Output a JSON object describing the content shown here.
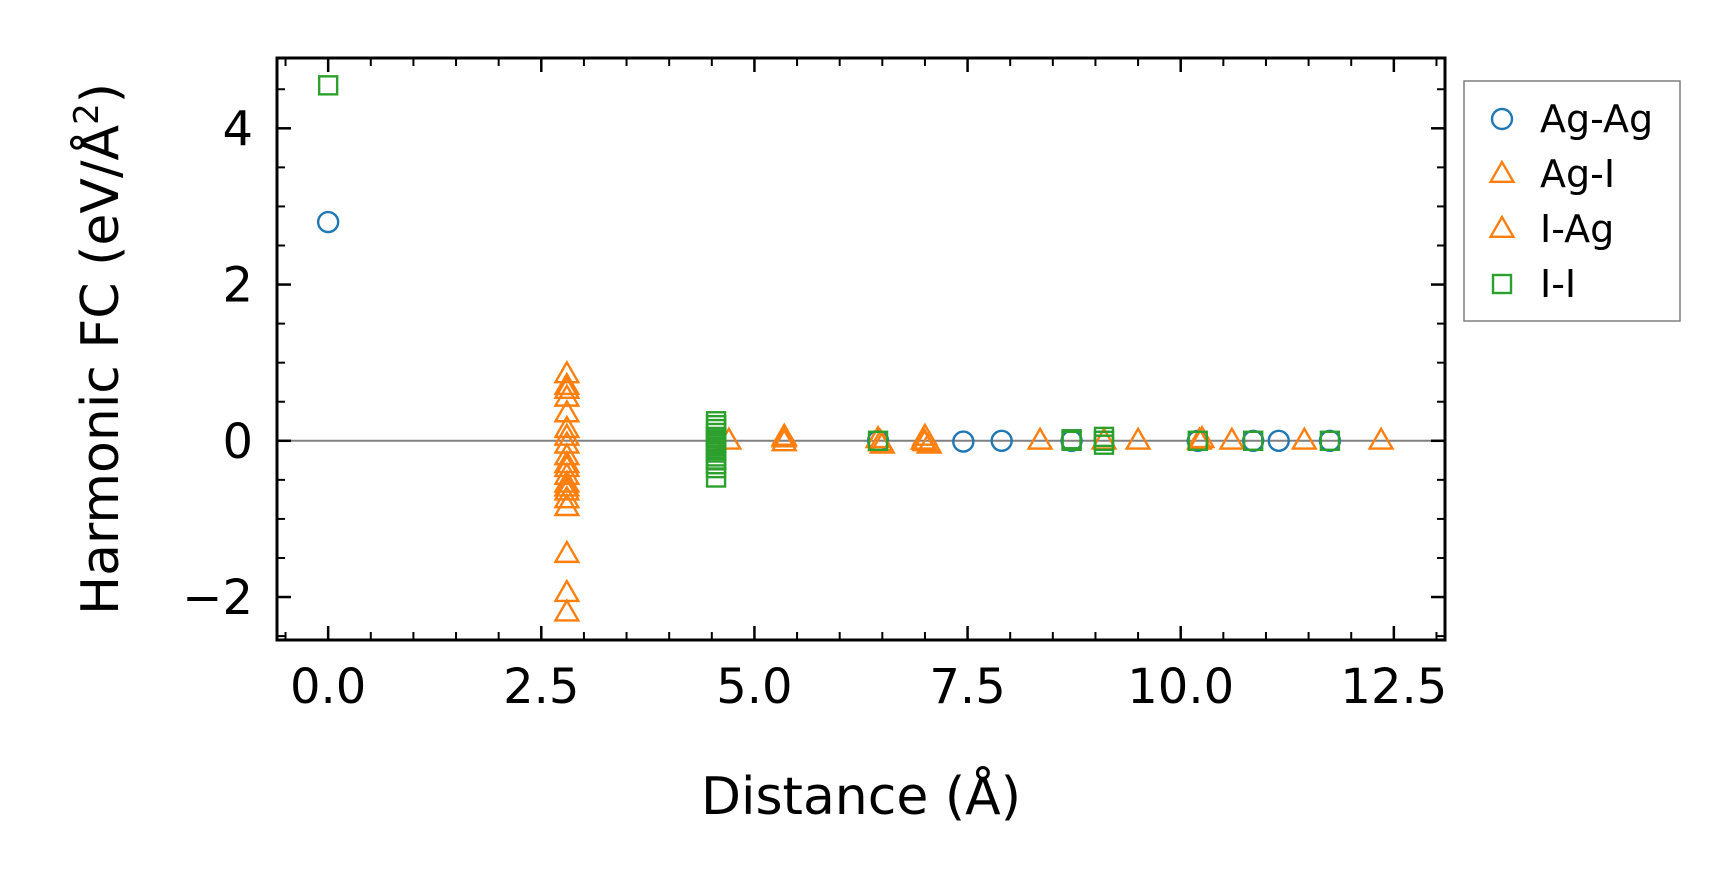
{
  "chart_data": {
    "type": "scatter",
    "title": "",
    "xlabel": "Distance (Å)",
    "ylabel": "Harmonic FC (eV/Å",
    "ylabel_sup": "2",
    "ylabel_close": ")",
    "xlim": [
      -0.6,
      13.1
    ],
    "ylim": [
      -2.55,
      4.9
    ],
    "xticks": [
      0.0,
      2.5,
      5.0,
      7.5,
      10.0,
      12.5
    ],
    "xtick_labels": [
      "0.0",
      "2.5",
      "5.0",
      "7.5",
      "10.0",
      "12.5"
    ],
    "yticks": [
      -2,
      0,
      2,
      4
    ],
    "ytick_labels": [
      "−2",
      "0",
      "2",
      "4"
    ],
    "zero_line": true,
    "legend_position": "outside-right-top",
    "series": [
      {
        "name": "Ag-Ag",
        "marker": "circle",
        "color": "#1f77b4",
        "points": [
          [
            0.0,
            2.8
          ],
          [
            6.45,
            0.0
          ],
          [
            7.45,
            -0.01
          ],
          [
            7.9,
            0.0
          ],
          [
            8.72,
            0.0
          ],
          [
            10.2,
            0.0
          ],
          [
            10.85,
            0.0
          ],
          [
            11.15,
            0.0
          ],
          [
            11.75,
            0.0
          ]
        ]
      },
      {
        "name": "Ag-I",
        "marker": "triangle",
        "color": "#ff7f0e",
        "points": [
          [
            2.8,
            0.85
          ],
          [
            2.8,
            0.65
          ],
          [
            2.8,
            0.55
          ],
          [
            2.8,
            0.35
          ],
          [
            2.8,
            0.05
          ],
          [
            2.8,
            -0.05
          ],
          [
            2.8,
            -0.2
          ],
          [
            2.8,
            -0.35
          ],
          [
            2.8,
            -0.45
          ],
          [
            2.8,
            -0.55
          ],
          [
            2.8,
            -0.65
          ],
          [
            2.8,
            -0.75
          ],
          [
            2.8,
            -0.85
          ],
          [
            2.8,
            -1.45
          ],
          [
            2.8,
            -1.95
          ],
          [
            2.8,
            -2.2
          ],
          [
            4.7,
            0.0
          ],
          [
            5.35,
            0.05
          ],
          [
            5.35,
            -0.02
          ],
          [
            6.45,
            0.02
          ],
          [
            6.5,
            -0.05
          ],
          [
            7.0,
            0.05
          ],
          [
            7.0,
            -0.02
          ],
          [
            7.05,
            -0.05
          ],
          [
            8.35,
            0.0
          ],
          [
            9.1,
            0.0
          ],
          [
            9.5,
            0.0
          ],
          [
            10.25,
            0.02
          ],
          [
            10.6,
            0.0
          ],
          [
            11.45,
            0.0
          ],
          [
            12.35,
            0.0
          ]
        ]
      },
      {
        "name": "I-Ag",
        "marker": "triangle",
        "color": "#ff7f0e",
        "points": [
          [
            2.8,
            0.7
          ],
          [
            2.8,
            0.15
          ],
          [
            2.8,
            -0.3
          ],
          [
            2.8,
            -0.6
          ],
          [
            5.35,
            0.03
          ],
          [
            6.48,
            -0.02
          ],
          [
            6.98,
            0.0
          ],
          [
            10.22,
            0.0
          ]
        ]
      },
      {
        "name": "I-I",
        "marker": "square",
        "color": "#2ca02c",
        "points": [
          [
            0.0,
            4.55
          ],
          [
            4.55,
            0.25
          ],
          [
            4.55,
            0.2
          ],
          [
            4.55,
            0.15
          ],
          [
            4.55,
            0.1
          ],
          [
            4.55,
            0.05
          ],
          [
            4.55,
            0.0
          ],
          [
            4.55,
            -0.05
          ],
          [
            4.55,
            -0.1
          ],
          [
            4.55,
            -0.15
          ],
          [
            4.55,
            -0.2
          ],
          [
            4.55,
            -0.25
          ],
          [
            4.55,
            -0.3
          ],
          [
            4.55,
            -0.35
          ],
          [
            4.55,
            -0.47
          ],
          [
            6.45,
            0.0
          ],
          [
            8.72,
            0.0
          ],
          [
            8.72,
            0.02
          ],
          [
            9.1,
            0.05
          ],
          [
            9.1,
            -0.05
          ],
          [
            9.1,
            0.0
          ],
          [
            10.2,
            0.0
          ],
          [
            10.85,
            0.0
          ],
          [
            11.75,
            0.0
          ]
        ]
      }
    ]
  }
}
